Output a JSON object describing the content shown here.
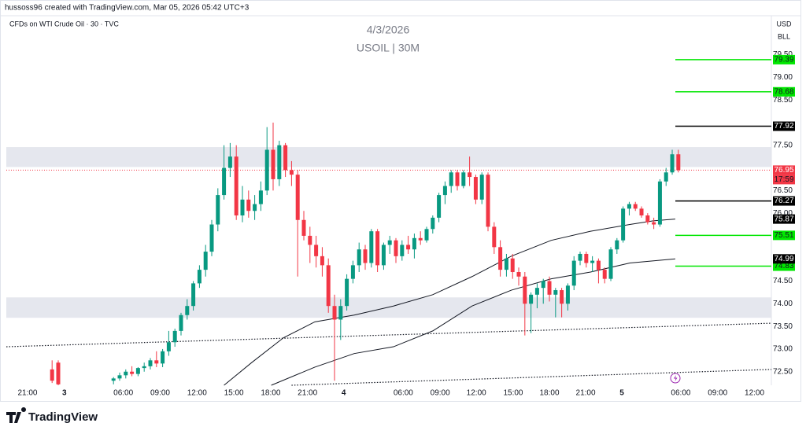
{
  "chart_data": {
    "type": "candlestick",
    "header": "hussoss96 created with TradingView.com, Mar 05, 2026 05:42 UTC+3",
    "symbol_line": "CFDs on WTI Crude Oil · 30 · TVC",
    "title": "4/3/2026",
    "subtitle": "USOIL | 30M",
    "currency": "USD",
    "unit": "BLL",
    "brand": "TradingView",
    "countdown": "17:59",
    "ylim": [
      72.2,
      80.36
    ],
    "xlim": [
      -3.46,
      121.15
    ],
    "yticks": [
      {
        "value": 79.5,
        "label": "79.50"
      },
      {
        "value": 79,
        "label": "79.00"
      },
      {
        "value": 78.5,
        "label": "78.50"
      },
      {
        "value": 77.5,
        "label": "77.50"
      },
      {
        "value": 76.5,
        "label": "76.50"
      },
      {
        "value": 76,
        "label": "76.00"
      },
      {
        "value": 74.5,
        "label": "74.50"
      },
      {
        "value": 74,
        "label": "74.00"
      },
      {
        "value": 73.5,
        "label": "73.50"
      },
      {
        "value": 73,
        "label": "73.00"
      },
      {
        "value": 72.5,
        "label": "72.50"
      }
    ],
    "xticks": [
      {
        "value": 0,
        "label": "21:00"
      },
      {
        "value": 6,
        "label": "3"
      },
      {
        "value": 15.6,
        "label": "06:00"
      },
      {
        "value": 21.6,
        "label": "09:00"
      },
      {
        "value": 27.6,
        "label": "12:00"
      },
      {
        "value": 33.6,
        "label": "15:00"
      },
      {
        "value": 39.6,
        "label": "18:00"
      },
      {
        "value": 45.6,
        "label": "21:00"
      },
      {
        "value": 51.5,
        "label": "4"
      },
      {
        "value": 61.2,
        "label": "06:00"
      },
      {
        "value": 67.2,
        "label": "09:00"
      },
      {
        "value": 73.1,
        "label": "12:00"
      },
      {
        "value": 79.1,
        "label": "15:00"
      },
      {
        "value": 85,
        "label": "18:00"
      },
      {
        "value": 90.9,
        "label": "21:00"
      },
      {
        "value": 96.8,
        "label": "5"
      },
      {
        "value": 106.4,
        "label": "06:00"
      },
      {
        "value": 112.4,
        "label": "09:00"
      },
      {
        "value": 118.4,
        "label": "12:00"
      }
    ],
    "grid": false,
    "candles": {
      "up_color": "#089981",
      "down_color": "#f23645",
      "x": [
        4,
        5,
        14,
        15,
        16,
        17,
        18,
        19,
        20,
        21,
        22,
        23,
        24,
        25,
        26,
        27,
        28,
        29,
        30,
        31,
        32,
        33,
        34,
        35,
        36,
        37,
        38,
        39,
        40,
        41,
        42,
        43,
        44,
        45,
        46,
        47,
        48,
        49,
        50,
        51,
        52,
        53,
        54,
        55,
        56,
        57,
        58,
        59,
        60,
        61,
        62,
        63,
        64,
        65,
        66,
        67,
        68,
        69,
        70,
        71,
        72,
        73,
        74,
        75,
        76,
        77,
        78,
        79,
        80,
        81,
        82,
        83,
        84,
        85,
        86,
        87,
        88,
        89,
        90,
        91,
        92,
        93,
        94,
        95,
        96,
        97,
        98,
        99,
        100,
        101,
        102,
        103,
        104,
        105,
        106
      ],
      "open": [
        72.55,
        72.7,
        72.3,
        72.35,
        72.42,
        72.5,
        72.45,
        72.58,
        72.62,
        72.75,
        72.68,
        72.95,
        73.15,
        73.4,
        73.75,
        73.95,
        74.45,
        74.75,
        75.15,
        75.75,
        76.4,
        77,
        77.25,
        75.95,
        76.3,
        76.05,
        76.2,
        76.5,
        77.4,
        76.75,
        77.5,
        76.95,
        76.85,
        75.85,
        75.5,
        75.3,
        75.05,
        74.85,
        73.95,
        73.65,
        73.95,
        74.55,
        74.85,
        75.2,
        74.9,
        75.6,
        74.85,
        75.3,
        75.4,
        75.05,
        75.3,
        75.2,
        75.45,
        75.4,
        75.65,
        75.9,
        76.4,
        76.6,
        76.9,
        76.6,
        76.9,
        76.8,
        76.3,
        76.85,
        75.7,
        75.25,
        74.75,
        75,
        74.7,
        74.6,
        74,
        74.2,
        74.35,
        74.5,
        74.2,
        74.3,
        74,
        74.4,
        74.95,
        75.1,
        74.9,
        74.95,
        74.75,
        74.55,
        75.2,
        75.4,
        76.1,
        76.2,
        76.1,
        75.95,
        75.8,
        75.75,
        76.7,
        76.9,
        77.3
      ],
      "high": [
        72.75,
        72.75,
        72.38,
        72.48,
        72.55,
        72.62,
        72.6,
        72.7,
        72.8,
        72.95,
        73,
        73.4,
        73.45,
        73.8,
        74.1,
        74.5,
        74.85,
        75.3,
        75.85,
        76.55,
        77.5,
        77.55,
        77.5,
        76.6,
        76.5,
        76.4,
        76.7,
        77.9,
        78,
        77.6,
        77.55,
        77.15,
        76.95,
        76.05,
        75.7,
        75.5,
        75.25,
        75,
        74.2,
        74.1,
        74.65,
        74.95,
        75.35,
        75.3,
        75.65,
        75.65,
        75.35,
        75.5,
        75.45,
        75.4,
        75.5,
        75.55,
        75.6,
        75.7,
        75.95,
        76.45,
        76.7,
        76.95,
        76.95,
        76.95,
        77.25,
        76.85,
        76.9,
        76.9,
        75.8,
        75.4,
        75.1,
        75.1,
        74.8,
        74.7,
        74.25,
        74.45,
        74.55,
        74.6,
        74.35,
        74.35,
        74.45,
        75.05,
        75.15,
        75.15,
        75.05,
        75,
        74.8,
        75.25,
        75.45,
        76.15,
        76.25,
        76.25,
        76.15,
        76,
        75.9,
        76.75,
        77,
        77.4,
        77.4
      ],
      "low": [
        72.25,
        72.2,
        72.22,
        72.3,
        72.35,
        72.4,
        72.4,
        72.5,
        72.55,
        72.6,
        72.6,
        72.85,
        73.05,
        73.3,
        73.65,
        73.85,
        74.35,
        74.6,
        75.05,
        75.6,
        76.3,
        76.8,
        75.85,
        75.8,
        75.9,
        75.85,
        76.05,
        76.4,
        76.5,
        76.6,
        76.8,
        76.6,
        74.6,
        75.4,
        74.9,
        74.8,
        74.6,
        73.8,
        72.3,
        73.2,
        73.85,
        74.45,
        74.7,
        74.75,
        74.8,
        74.7,
        74.75,
        75.1,
        74.9,
        74.95,
        75.1,
        75,
        75.3,
        75.35,
        75.55,
        75.8,
        76.2,
        76.45,
        76.5,
        76.55,
        76.6,
        76.2,
        76.2,
        75.6,
        75.1,
        74.6,
        74.6,
        74.55,
        74.4,
        73.3,
        73.35,
        73.9,
        74,
        74.05,
        73.7,
        73.7,
        73.85,
        74.3,
        74.85,
        74.8,
        74.7,
        74.45,
        74.45,
        74.5,
        75.1,
        75.35,
        75.95,
        76.05,
        75.9,
        75.75,
        75.65,
        75.7,
        76.6,
        76.85,
        76.9
      ],
      "close": [
        72.3,
        72.22,
        72.35,
        72.42,
        72.5,
        72.45,
        72.58,
        72.62,
        72.75,
        72.68,
        72.95,
        73.15,
        73.4,
        73.75,
        73.95,
        74.45,
        74.75,
        75.15,
        75.75,
        76.4,
        77,
        77.25,
        75.95,
        76.3,
        76.05,
        76.2,
        76.5,
        77.4,
        76.75,
        77.5,
        76.95,
        76.85,
        75.85,
        75.5,
        75.3,
        75.05,
        74.85,
        73.95,
        73.65,
        73.95,
        74.55,
        74.85,
        75.2,
        74.9,
        75.6,
        74.85,
        75.3,
        75.4,
        75.05,
        75.3,
        75.2,
        75.45,
        75.4,
        75.65,
        75.9,
        76.4,
        76.6,
        76.9,
        76.6,
        76.9,
        76.8,
        76.3,
        76.85,
        75.7,
        75.25,
        74.75,
        75,
        74.7,
        74.6,
        74,
        74.2,
        74.35,
        74.5,
        74.2,
        74.3,
        74,
        74.4,
        74.95,
        75.1,
        74.9,
        74.95,
        74.75,
        74.55,
        75.2,
        75.4,
        76.1,
        76.2,
        76.1,
        75.95,
        75.8,
        75.75,
        76.7,
        76.9,
        77.3,
        76.95
      ]
    },
    "moving_averages": [
      {
        "color": "#131722",
        "label": 75.87,
        "x": [
          32,
          36.5,
          41.7,
          46.8,
          53.2,
          59.6,
          66,
          72.4,
          78.8,
          85.3,
          91.7,
          98.1,
          101.9,
          105.5
        ],
        "values": [
          72.2,
          72.7,
          73.25,
          73.6,
          73.75,
          73.95,
          74.2,
          74.6,
          75.05,
          75.4,
          75.6,
          75.75,
          75.83,
          75.87
        ]
      },
      {
        "color": "#131722",
        "label": 74.99,
        "x": [
          39.7,
          46.8,
          53.2,
          59.6,
          66,
          72.4,
          78.8,
          85.3,
          91.7,
          98.1,
          105.5
        ],
        "values": [
          72.2,
          72.6,
          72.9,
          73.05,
          73.4,
          73.95,
          74.3,
          74.55,
          74.7,
          74.9,
          74.99
        ]
      }
    ],
    "trendlines": [
      {
        "x": [
          -3.46,
          121.15
        ],
        "values": [
          73.05,
          73.57
        ]
      },
      {
        "x": [
          43,
          121.15
        ],
        "values": [
          72.2,
          72.55
        ]
      }
    ],
    "zones": [
      {
        "from": 77.46,
        "to": 77.02,
        "color": "#e0e3eb"
      },
      {
        "from": 74.14,
        "to": 73.69,
        "color": "#e0e3eb"
      }
    ],
    "current_price": {
      "value": 76.95,
      "color": "#f23645"
    },
    "levels": [
      {
        "value": 79.39,
        "color": "#00e600"
      },
      {
        "value": 78.68,
        "color": "#00e600"
      },
      {
        "value": 77.92,
        "color": "#000000"
      },
      {
        "value": 76.27,
        "color": "#000000"
      },
      {
        "value": 75.51,
        "color": "#00e600"
      },
      {
        "value": 74.83,
        "color": "#00e600"
      }
    ]
  }
}
